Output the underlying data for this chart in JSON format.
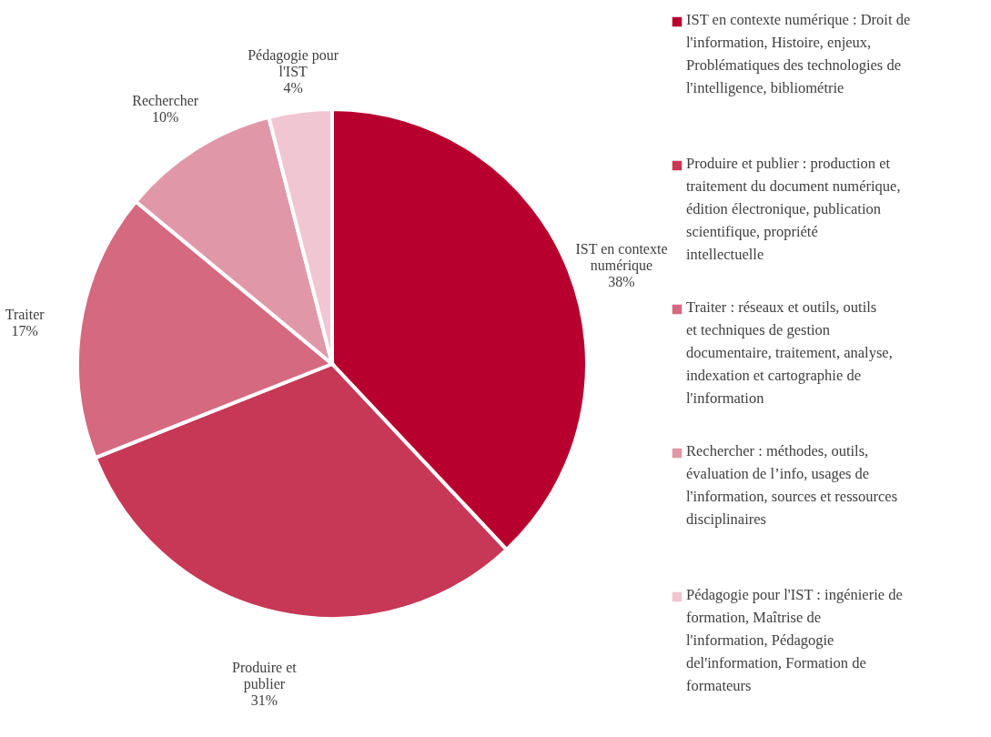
{
  "chart_data": {
    "type": "pie",
    "categories": [
      "IST en contexte numérique : Droit de l'information, Histoire, enjeux, Problématiques des technologies de l'intelligence, bibliométrie",
      "Produire et publier : production et traitement du document numérique, édition électronique, publication scientifique, propriété intellectuelle",
      "Traiter : réseaux et outils, outils et techniques de gestion documentaire, traitement, analyse, indexation et cartographie de l'information",
      "Rechercher : méthodes, outils, évaluation de l’info, usages de l'information, sources et ressources disciplinaires",
      "Pédagogie pour l'IST : ingénierie de formation, Maîtrise de l'information, Pédagogie del'information, Formation de formateurs"
    ],
    "values": [
      38,
      31,
      17,
      10,
      4
    ],
    "value_labels": [
      "38%",
      "31%",
      "17%",
      "10%",
      "4%"
    ],
    "colors": [
      "#b8002e",
      "#c73756",
      "#d4697f",
      "#e098a9",
      "#efc6d1"
    ],
    "annotations": [
      "IST en contexte numérique",
      "Produire et publier",
      "Traiter",
      "Rechercher",
      "Pédagogie pour l'IST"
    ],
    "legend": "right"
  }
}
